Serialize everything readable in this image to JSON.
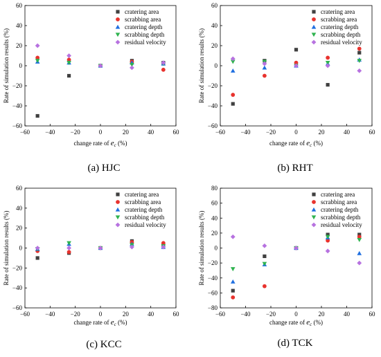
{
  "figure": {
    "legend_labels": [
      "cratering area",
      "scrabbing area",
      "cratering depth",
      "scrabbing depth",
      "residual velocity"
    ],
    "series_colors": [
      "#404040",
      "#e8332e",
      "#1f6fe0",
      "#2fb34f",
      "#b772e0"
    ],
    "series_markers": [
      "square",
      "circle",
      "triangle-up",
      "triangle-down",
      "diamond"
    ]
  },
  "chart_data": [
    {
      "type": "scatter",
      "caption": "(a) HJC",
      "xlabel_prefix": "change rate of ",
      "xlabel_var": "e",
      "xlabel_sub": "c",
      "xlabel_suffix": " (%)",
      "ylabel": "Rate of simulation results (%)",
      "xlim": [
        -60,
        60
      ],
      "ylim": [
        -60,
        60
      ],
      "xticks": [
        -60,
        -40,
        -20,
        0,
        20,
        40,
        60
      ],
      "yticks": [
        -60,
        -40,
        -20,
        0,
        20,
        40,
        60
      ],
      "legend": "top-right",
      "x": [
        -50,
        -25,
        0,
        25,
        50
      ],
      "series": [
        {
          "name": "cratering area",
          "values": [
            -50,
            -10,
            0,
            5,
            3
          ]
        },
        {
          "name": "scrabbing area",
          "values": [
            8,
            6,
            0,
            4,
            -4
          ]
        },
        {
          "name": "cratering depth",
          "values": [
            4,
            3,
            0,
            3,
            2
          ]
        },
        {
          "name": "scrabbing depth",
          "values": [
            5,
            3,
            0,
            1,
            2
          ]
        },
        {
          "name": "residual velocity",
          "values": [
            20,
            10,
            0,
            -2,
            3
          ]
        }
      ]
    },
    {
      "type": "scatter",
      "caption": "(b) RHT",
      "xlabel_prefix": "change rate of ",
      "xlabel_var": "e",
      "xlabel_sub": "c",
      "xlabel_suffix": " (%)",
      "ylabel": "Rate of simulation results (%)",
      "xlim": [
        -60,
        60
      ],
      "ylim": [
        -60,
        60
      ],
      "xticks": [
        -60,
        -40,
        -20,
        0,
        20,
        40,
        60
      ],
      "yticks": [
        -60,
        -40,
        -20,
        0,
        20,
        40,
        60
      ],
      "legend": "top-right",
      "x": [
        -50,
        -25,
        0,
        25,
        50
      ],
      "series": [
        {
          "name": "cratering area",
          "values": [
            -38,
            5,
            16,
            -19,
            13
          ]
        },
        {
          "name": "scrabbing area",
          "values": [
            -29,
            -10,
            3,
            8,
            17
          ]
        },
        {
          "name": "cratering depth",
          "values": [
            -5,
            -2,
            0,
            2,
            6
          ]
        },
        {
          "name": "scrabbing depth",
          "values": [
            4,
            4,
            0,
            3,
            5
          ]
        },
        {
          "name": "residual velocity",
          "values": [
            7,
            2,
            0,
            0,
            -5
          ]
        }
      ]
    },
    {
      "type": "scatter",
      "caption": "(c) KCC",
      "xlabel_prefix": "change rate of ",
      "xlabel_var": "e",
      "xlabel_sub": "c",
      "xlabel_suffix": " (%)",
      "ylabel": "Rate of simulation results (%)",
      "xlim": [
        -60,
        60
      ],
      "ylim": [
        -60,
        60
      ],
      "xticks": [
        -60,
        -40,
        -20,
        0,
        20,
        40,
        60
      ],
      "yticks": [
        -60,
        -40,
        -20,
        0,
        20,
        40,
        60
      ],
      "legend": "top-right",
      "x": [
        -50,
        -25,
        0,
        25,
        50
      ],
      "series": [
        {
          "name": "cratering area",
          "values": [
            -10,
            -5,
            0,
            7,
            3
          ]
        },
        {
          "name": "scrabbing area",
          "values": [
            -3,
            -4,
            0,
            6,
            5
          ]
        },
        {
          "name": "cratering depth",
          "values": [
            -1,
            4,
            0,
            4,
            1
          ]
        },
        {
          "name": "scrabbing depth",
          "values": [
            -1,
            5,
            0,
            3,
            2
          ]
        },
        {
          "name": "residual velocity",
          "values": [
            0,
            0,
            0,
            1,
            1
          ]
        }
      ]
    },
    {
      "type": "scatter",
      "caption": "(d) TCK",
      "xlabel_prefix": "change rate of ",
      "xlabel_var": "e",
      "xlabel_sub": "c",
      "xlabel_suffix": " (%)",
      "ylabel": "Rate of simulation results (%)",
      "xlim": [
        -60,
        60
      ],
      "ylim": [
        -80,
        80
      ],
      "xticks": [
        -60,
        -40,
        -20,
        0,
        20,
        40,
        60
      ],
      "yticks": [
        -80,
        -60,
        -40,
        -20,
        0,
        20,
        40,
        60,
        80
      ],
      "legend": "top-right",
      "x": [
        -50,
        -25,
        0,
        25,
        50
      ],
      "series": [
        {
          "name": "cratering area",
          "values": [
            -57,
            -11,
            0,
            18,
            18
          ]
        },
        {
          "name": "scrabbing area",
          "values": [
            -66,
            -51,
            0,
            10,
            15
          ]
        },
        {
          "name": "cratering depth",
          "values": [
            -45,
            -22,
            0,
            14,
            -7
          ]
        },
        {
          "name": "scrabbing depth",
          "values": [
            -28,
            -21,
            0,
            15,
            11
          ]
        },
        {
          "name": "residual velocity",
          "values": [
            15,
            3,
            0,
            -4,
            -20
          ]
        }
      ]
    }
  ]
}
